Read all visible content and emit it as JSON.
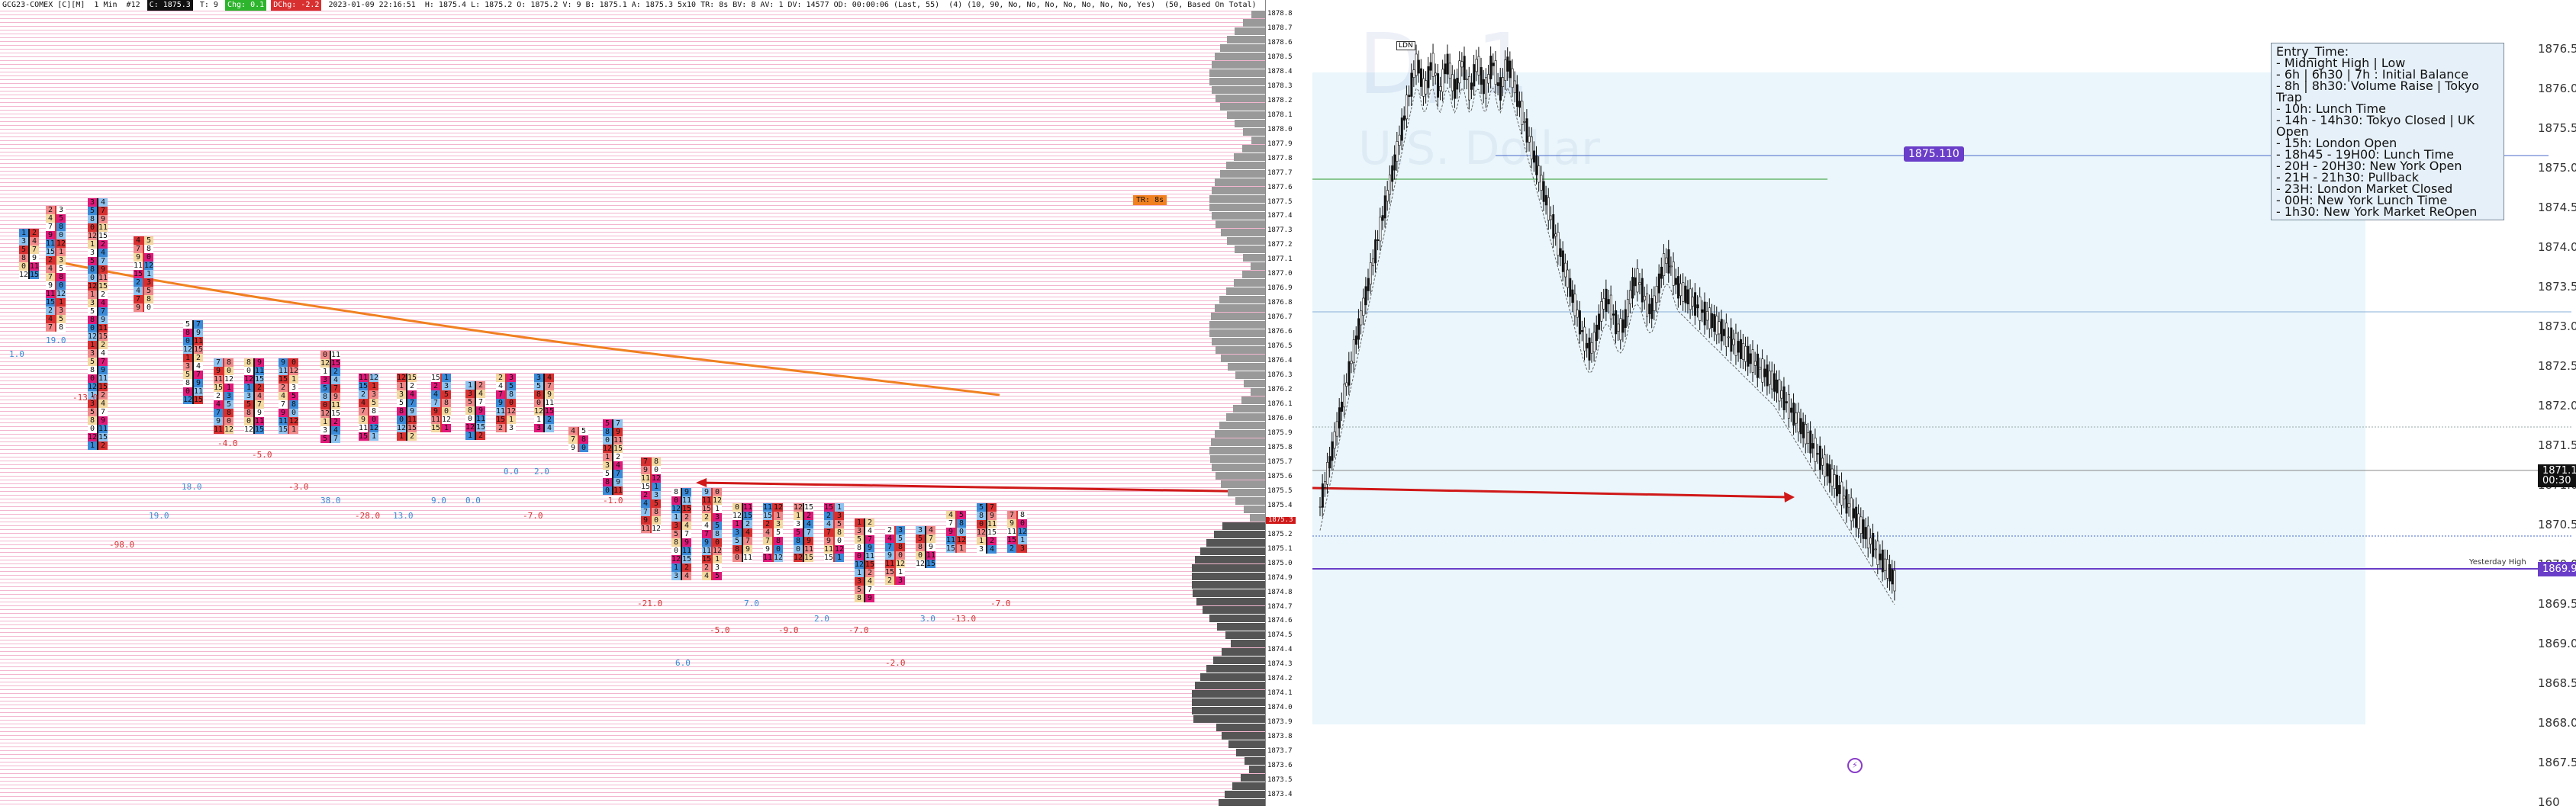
{
  "header": {
    "symbol": "GCG23-COMEX [C][M]",
    "interval": "1 Min",
    "bar_index": "#12",
    "close": "C: 1875.3",
    "t": "T: 9",
    "chg": "Chg: 0.1",
    "dchg": "DChg: -2.2",
    "datetime": "2023-01-09 22:16:51",
    "ohlc": "H: 1875.4 L: 1875.2 O: 1875.2 V: 9 B: 1875.1 A: 1875.3 5x10 TR: 8s BV: 8 AV: 1 DV: 14577 OD: 00:00:06 (Last, 55)",
    "misc": "(4)  (10, 90, No, No, No, No, No, No, No, Yes)",
    "right": "(50, Based On Total)"
  },
  "tr_badge": "TR: 8s",
  "left_deltas": [
    {
      "t": "19.0",
      "c": "#3a8ad8"
    },
    {
      "t": "1.0",
      "c": "#3a8ad8"
    },
    {
      "t": "-13.0",
      "c": "#d83030"
    },
    {
      "t": "-4.0",
      "c": "#d83030"
    },
    {
      "t": "-5.0",
      "c": "#d83030"
    },
    {
      "t": "18.0",
      "c": "#3a8ad8"
    },
    {
      "t": "-3.0",
      "c": "#d83030"
    },
    {
      "t": "38.0",
      "c": "#3a8ad8"
    },
    {
      "t": "9.0",
      "c": "#3a8ad8"
    },
    {
      "t": "0.0",
      "c": "#3a8ad8"
    },
    {
      "t": "0.0",
      "c": "#3a8ad8"
    },
    {
      "t": "2.0",
      "c": "#3a8ad8"
    },
    {
      "t": "-1.0",
      "c": "#d83030"
    },
    {
      "t": "19.0",
      "c": "#3a8ad8"
    },
    {
      "t": "-28.0",
      "c": "#d83030"
    },
    {
      "t": "13.0",
      "c": "#3a8ad8"
    },
    {
      "t": "-7.0",
      "c": "#d83030"
    },
    {
      "t": "-98.0",
      "c": "#d83030"
    },
    {
      "t": "-21.0",
      "c": "#d83030"
    },
    {
      "t": "7.0",
      "c": "#3a8ad8"
    },
    {
      "t": "-5.0",
      "c": "#d83030"
    },
    {
      "t": "-9.0",
      "c": "#d83030"
    },
    {
      "t": "2.0",
      "c": "#3a8ad8"
    },
    {
      "t": "-7.0",
      "c": "#d83030"
    },
    {
      "t": "3.0",
      "c": "#3a8ad8"
    },
    {
      "t": "-13.0",
      "c": "#d83030"
    },
    {
      "t": "-7.0",
      "c": "#d83030"
    },
    {
      "t": "6.0",
      "c": "#3a8ad8"
    },
    {
      "t": "-2.0",
      "c": "#d83030"
    }
  ],
  "ladder_prices": [
    "1878.8",
    "1878.7",
    "1878.6",
    "1878.5",
    "1878.4",
    "1878.3",
    "1878.2",
    "1878.1",
    "1878.0",
    "1877.9",
    "1877.8",
    "1877.7",
    "1877.6",
    "1877.5",
    "1877.4",
    "1877.3",
    "1877.2",
    "1877.1",
    "1877.0",
    "1876.9",
    "1876.8",
    "1876.7",
    "1876.6",
    "1876.5",
    "1876.4",
    "1876.3",
    "1876.2",
    "1876.1",
    "1876.0",
    "1875.9",
    "1875.8",
    "1875.7",
    "1875.6",
    "1875.5",
    "1875.4",
    "1875.3",
    "1875.2",
    "1875.1",
    "1875.0",
    "1874.9",
    "1874.8",
    "1874.7",
    "1874.6",
    "1874.5",
    "1874.4",
    "1874.3",
    "1874.2",
    "1874.1",
    "1874.0",
    "1873.9",
    "1873.8",
    "1873.7",
    "1873.6",
    "1873.5",
    "1873.4"
  ],
  "ladder_current": "1875.3",
  "right": {
    "watermark": "D, 1",
    "watermark_sub": "U.S. Dollar",
    "info_title": "Entry_Time:",
    "info_lines": [
      "- Midnight High | Low",
      "- 6h | 6h30 | 7h : Initial Balance",
      "- 8h | 8h30: Volume Raise | Tokyo Trap",
      "- 10h: Lunch Time",
      "- 14h - 14h30: Tokyo Closed | UK Open",
      "- 15h: London Open",
      "- 18h45 - 19H00: Lunch Time",
      "- 20H - 20H30: New York Open",
      "- 21H - 21h30: Pullback",
      "- 23H: London Market Closed",
      "- 00H: New York Lunch Time",
      "- 1h30: New York Market ReOpen"
    ],
    "price_axis": [
      "1876.500",
      "1876.000",
      "1875.500",
      "1875.000",
      "1874.500",
      "1874.000",
      "1873.500",
      "1873.000",
      "1872.500",
      "1872.000",
      "1871.500",
      "1871.000",
      "1870.500",
      "1870.000",
      "1869.500",
      "1869.000",
      "1868.500",
      "1868.000",
      "1867.500",
      "160"
    ],
    "level_tag": "1875.110",
    "level_color": "#6a3ec8",
    "current_price": "1871.170",
    "current_time": "00:30",
    "yesterday_label": "Yesterday High",
    "yesterday_price": "1869.920",
    "small_box": "LDN"
  },
  "colors": {
    "bull": "#3a8ad8",
    "bear": "#d83030",
    "ma": "#f08020"
  }
}
